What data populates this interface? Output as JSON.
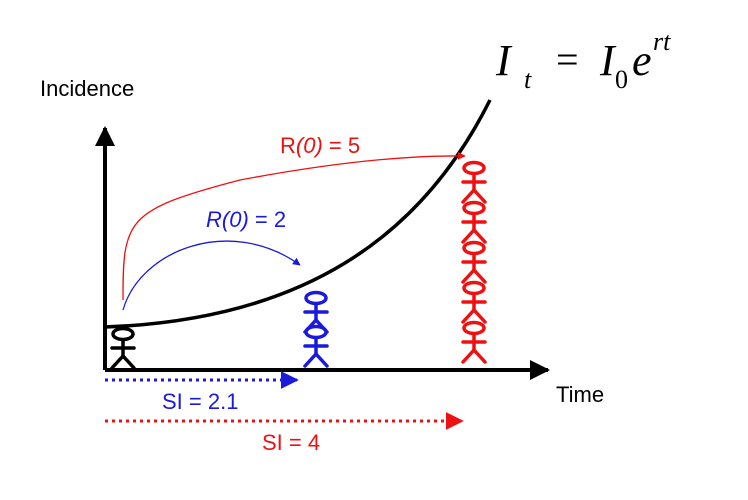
{
  "labels": {
    "y_axis": "Incidence",
    "x_axis": "Time",
    "r0_red_prefix": "R",
    "r0_red_arg": "(0)",
    "r0_red_suffix": " = 5",
    "r0_blue_prefix": "R",
    "r0_blue_arg": "(0)",
    "r0_blue_suffix": " = 2",
    "si_blue": "SI = 2.1",
    "si_red": "SI = 4"
  },
  "formula": {
    "lhs": "I",
    "lhs_sub": "t",
    "equals": "=",
    "rhs": "I",
    "rhs_sub": "0",
    "base": "e",
    "exponent": "rt"
  },
  "colors": {
    "axes": "#000000",
    "curve": "#000000",
    "blue": "#1a1adb",
    "red": "#ee1111",
    "text": "#000000"
  },
  "icons": [
    "stick-figure-icon"
  ]
}
